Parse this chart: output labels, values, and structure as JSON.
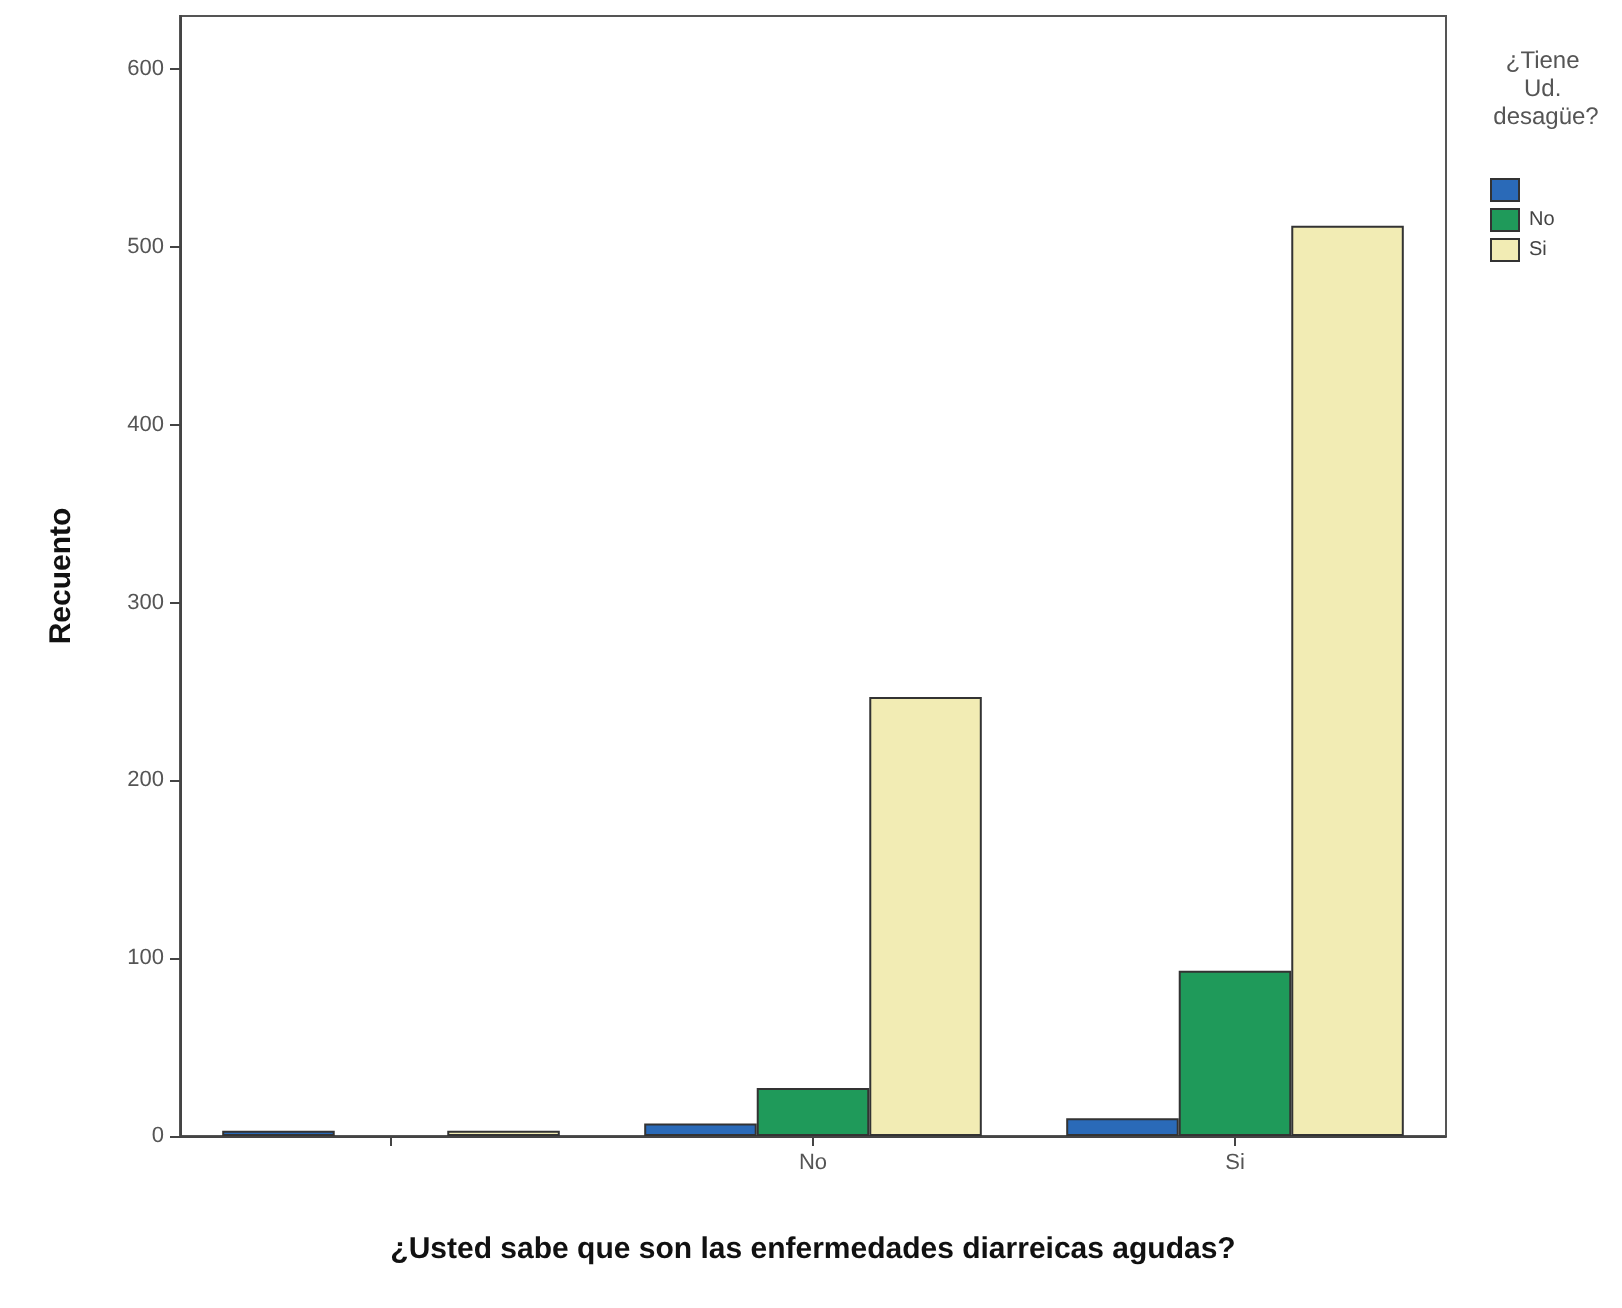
{
  "chart_data": {
    "type": "bar",
    "xlabel": "¿Usted sabe que son las enfermedades diarreicas agudas?",
    "ylabel": "Recuento",
    "legend_title": "¿Tiene Ud. desagüe?",
    "categories": [
      null,
      "No",
      "Si"
    ],
    "series": [
      {
        "color": "#2a6ab8",
        "values": [
          3,
          7,
          10
        ]
      },
      {
        "name": "No",
        "color": "#1f9a5a",
        "values": [
          0,
          27,
          93
        ]
      },
      {
        "name": "Si",
        "color": "#f2ecb4",
        "values": [
          3,
          247,
          512
        ]
      }
    ],
    "ylim": [
      0,
      630
    ],
    "yticks": [
      0,
      100,
      200,
      300,
      400,
      500,
      600
    ],
    "grid": false,
    "legend": "top right"
  }
}
